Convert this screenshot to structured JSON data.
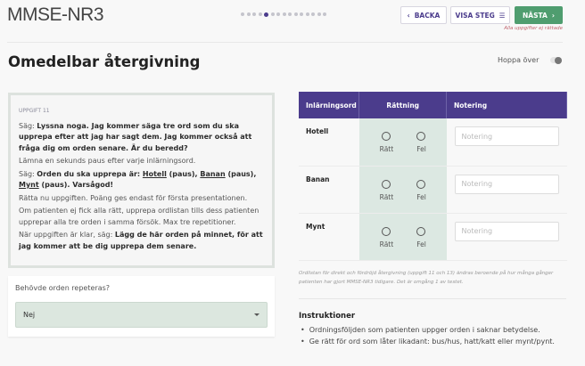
{
  "header": {
    "title": "MMSE-NR3",
    "steps_total": 15,
    "steps_active_index": 4,
    "back_label": "BACKA",
    "steps_label": "VISA STEG",
    "next_label": "NÄSTA",
    "error_note": "Alla uppgifter ej rättade"
  },
  "page": {
    "heading": "Omedelbar återgivning",
    "skip_label": "Hoppa över",
    "skip_on": false
  },
  "task": {
    "label": "UPPGIFT 11",
    "p1_prefix": "Säg: ",
    "p1_bold": "Lyssna noga. Jag kommer säga tre ord som du ska upprepa efter att jag har sagt dem. Jag kommer också att fråga dig om orden senare. Är du beredd?",
    "p2": "Lämna en sekunds paus efter varje inlärningsord.",
    "p3_prefix": "Säg: ",
    "p3_bold": "Orden du ska upprepa är: ",
    "w1": "Hotell",
    "pause": " (paus), ",
    "w2": "Banan",
    "w3": "Mynt",
    "p3_end": " (paus). Varsågod!",
    "p4": "Rätta nu uppgiften. Poäng ges endast för första presentationen.",
    "p5": "Om patienten ej fick alla rätt, upprepa ordlistan tills dess patienten upprepar alla tre orden i samma försök. Max tre repetitioner.",
    "p6_prefix": "När uppgiften är klar, säg: ",
    "p6_bold": "Lägg de här orden på minnet, för att jag kommer att be dig upprepa dem senare."
  },
  "repeat": {
    "question": "Behövde orden repeteras?",
    "value": "Nej"
  },
  "table": {
    "headers": [
      "Inlärningsord",
      "Rättning",
      "Notering"
    ],
    "rows": [
      {
        "word": "Hotell",
        "correct": "Rätt",
        "wrong": "Fel",
        "placeholder": "Notering"
      },
      {
        "word": "Banan",
        "correct": "Rätt",
        "wrong": "Fel",
        "placeholder": "Notering"
      },
      {
        "word": "Mynt",
        "correct": "Rätt",
        "wrong": "Fel",
        "placeholder": "Notering"
      }
    ]
  },
  "footnote": "Ordlistan för direkt och fördröjd återgivning (uppgift 11 och 13) ändras beroende på hur många gånger patienten har gjort MMSE-NR3 tidigare. Det är omgång 1 av testet.",
  "instructions": {
    "title": "Instruktioner",
    "items": [
      "Ordningsföljden som patienten uppger orden i saknar betydelse.",
      "Ge rätt för ord som låter likadant: bus/hus, hatt/katt eller mynt/pynt."
    ]
  },
  "colors": {
    "primary": "#4b3c8c",
    "success": "#4f9d6f",
    "grading_bg": "#dce8e2",
    "error": "#c0646e"
  }
}
